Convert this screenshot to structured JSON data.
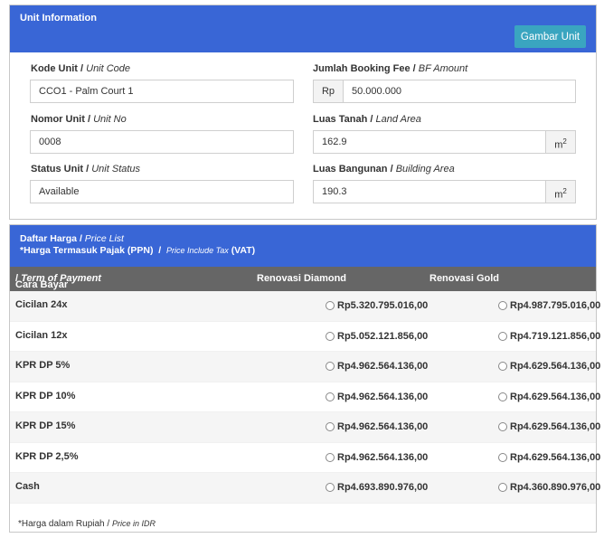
{
  "unit_panel": {
    "title": "Unit Information",
    "gambar_button": "Gambar Unit",
    "fields": {
      "kode_unit": {
        "label": "Kode Unit",
        "label_en": "Unit Code",
        "value": "CCO1 - Palm Court 1"
      },
      "booking_fee": {
        "label": "Jumlah Booking Fee",
        "label_en": "BF Amount",
        "prefix": "Rp",
        "value": "50.000.000"
      },
      "nomor_unit": {
        "label": "Nomor Unit",
        "label_en": "Unit No",
        "value": "0008"
      },
      "luas_tanah": {
        "label": "Luas Tanah",
        "label_en": "Land Area",
        "value": "162.9",
        "unit": "m",
        "unit_sup": "2"
      },
      "status_unit": {
        "label": "Status Unit",
        "label_en": "Unit Status",
        "value": "Available"
      },
      "luas_bangunan": {
        "label": "Luas Bangunan",
        "label_en": "Building Area",
        "value": "190.3",
        "unit": "m",
        "unit_sup": "2"
      }
    }
  },
  "price_panel": {
    "title": "Daftar Harga",
    "title_en": "Price List",
    "subtitle": "*Harga Termasuk Pajak (PPN)",
    "subtitle_en": "Price Include Tax",
    "subtitle_vat": "(VAT)",
    "columns": {
      "payment": "Cara Bayar",
      "payment_en": "Term of Payment",
      "diamond": "Renovasi Diamond",
      "gold": "Renovasi Gold"
    },
    "rows": [
      {
        "label": "Cicilan 24x",
        "diamond": "Rp5.320.795.016,00",
        "gold": "Rp4.987.795.016,00"
      },
      {
        "label": "Cicilan 12x",
        "diamond": "Rp5.052.121.856,00",
        "gold": "Rp4.719.121.856,00"
      },
      {
        "label": "KPR DP 5%",
        "diamond": "Rp4.962.564.136,00",
        "gold": "Rp4.629.564.136,00"
      },
      {
        "label": "KPR DP 10%",
        "diamond": "Rp4.962.564.136,00",
        "gold": "Rp4.629.564.136,00"
      },
      {
        "label": "KPR DP 15%",
        "diamond": "Rp4.962.564.136,00",
        "gold": "Rp4.629.564.136,00"
      },
      {
        "label": "KPR DP 2,5%",
        "diamond": "Rp4.962.564.136,00",
        "gold": "Rp4.629.564.136,00"
      },
      {
        "label": "Cash",
        "diamond": "Rp4.693.890.976,00",
        "gold": "Rp4.360.890.976,00"
      }
    ],
    "footnote": "*Harga dalam Rupiah /",
    "footnote_en": "Price in IDR"
  },
  "colors": {
    "header_blue": "#3966d6",
    "button_teal": "#3aa5c0",
    "table_header_gray": "#666666"
  }
}
